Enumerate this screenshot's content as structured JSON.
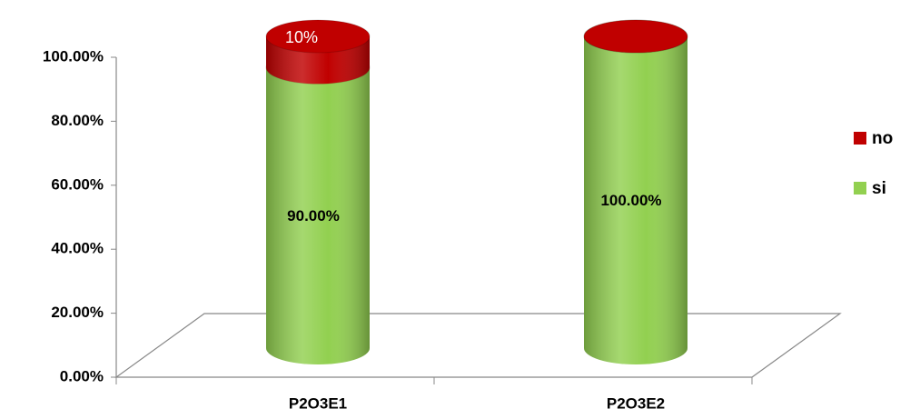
{
  "chart_data": {
    "type": "bar",
    "stacked": true,
    "categories": [
      "P2O3E1",
      "P2O3E2"
    ],
    "series": [
      {
        "name": "si",
        "color": "#92d050",
        "values": [
          90,
          100
        ],
        "value_labels": [
          "90.00%",
          "100.00%"
        ]
      },
      {
        "name": "no",
        "color": "#c00000",
        "values": [
          10,
          0
        ],
        "value_labels": [
          "10%",
          null
        ]
      }
    ],
    "ylim": [
      0,
      100
    ],
    "yticks": [
      {
        "value": 0,
        "label": "0.00%"
      },
      {
        "value": 20,
        "label": "20.00%"
      },
      {
        "value": 40,
        "label": "40.00%"
      },
      {
        "value": 60,
        "label": "60.00%"
      },
      {
        "value": 80,
        "label": "80.00%"
      },
      {
        "value": 100,
        "label": "100.00%"
      }
    ],
    "legend": "right"
  }
}
